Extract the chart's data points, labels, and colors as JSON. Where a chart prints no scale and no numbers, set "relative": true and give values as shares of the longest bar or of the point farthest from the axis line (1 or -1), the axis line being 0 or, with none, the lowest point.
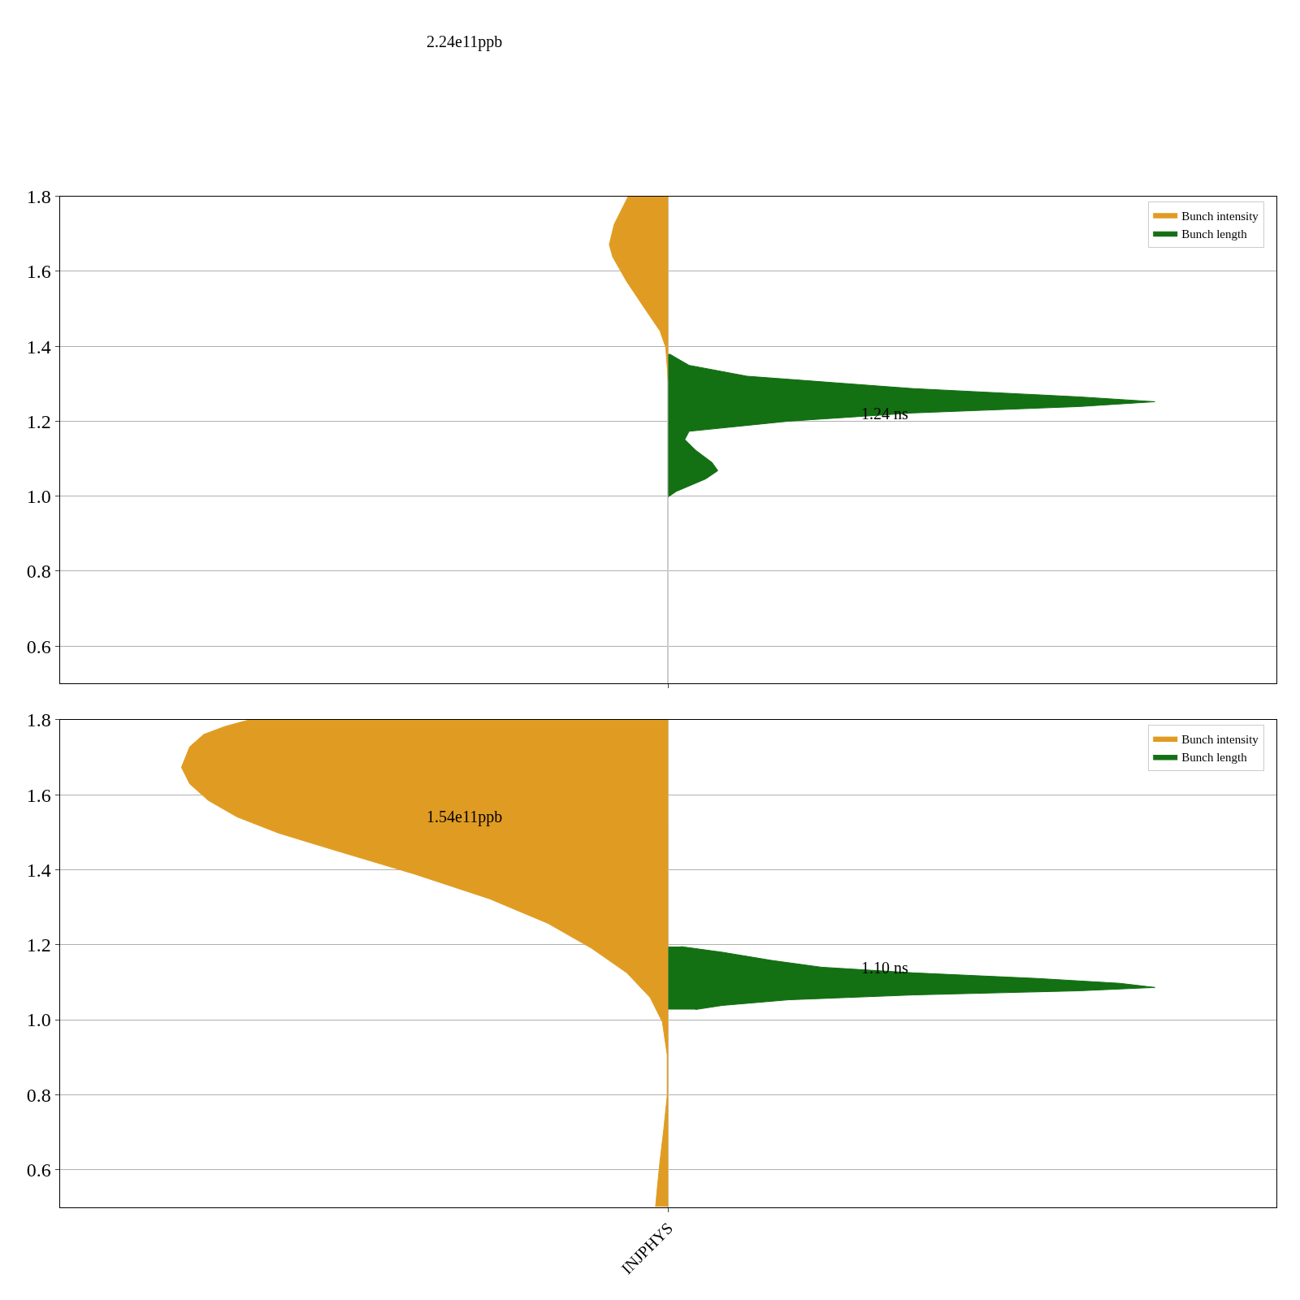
{
  "chart_data": [
    {
      "type": "area",
      "orientation": "horizontal",
      "relative": true,
      "ylim": [
        0.5,
        1.8
      ],
      "yticks": [
        0.6,
        0.8,
        {
          "value": 1,
          "label": "1.0"
        },
        1.2,
        1.4,
        1.6,
        1.8
      ],
      "grid": "y",
      "legend": "top right",
      "tick_labels": "y",
      "series": [
        {
          "name": "Bunch intensity",
          "color": "#e09c22",
          "x": [
            1.8,
            1.725,
            1.671,
            1.638,
            1.572,
            1.506,
            1.441,
            1.397,
            1.309
          ],
          "values": [
            -0.082,
            -0.111,
            -0.121,
            -0.114,
            -0.085,
            -0.051,
            -0.017,
            -0.005,
            0
          ]
        },
        {
          "name": "Bunch length",
          "color": "#137013",
          "x": [
            1.379,
            1.349,
            1.32,
            1.287,
            1.265,
            1.252,
            1.239,
            1.222,
            1.2,
            1.173,
            1.151,
            1.123,
            1.09,
            1.068,
            1.046,
            1.013,
            0.998
          ],
          "values": [
            0.003,
            0.043,
            0.162,
            0.503,
            0.843,
            1.0,
            0.843,
            0.503,
            0.247,
            0.043,
            0.034,
            0.056,
            0.09,
            0.102,
            0.077,
            0.017,
            0
          ]
        }
      ],
      "annotations": [
        "2.24e11ppb",
        "1.24 ns"
      ]
    },
    {
      "type": "area",
      "orientation": "horizontal",
      "relative": true,
      "ylim": [
        0.5,
        1.8
      ],
      "yticks": [
        0.6,
        0.8,
        {
          "value": 1,
          "label": "1.0"
        },
        1.2,
        1.4,
        1.6,
        1.8
      ],
      "grid": "y",
      "legend": "top right",
      "xlabel": "INJPHYS",
      "series": [
        {
          "name": "Bunch intensity",
          "color": "#e09c22",
          "x": [
            1.8,
            1.782,
            1.761,
            1.728,
            1.673,
            1.629,
            1.585,
            1.541,
            1.498,
            1.454,
            1.388,
            1.322,
            1.257,
            1.191,
            1.125,
            1.059,
            0.994,
            0.906,
            0.797,
            0.709,
            0.621,
            0.556,
            0.501
          ],
          "values": [
            -0.86,
            -0.911,
            -0.954,
            -0.983,
            -1.0,
            -0.983,
            -0.945,
            -0.886,
            -0.801,
            -0.69,
            -0.52,
            -0.366,
            -0.247,
            -0.158,
            -0.085,
            -0.037,
            -0.012,
            -0.002,
            -0.002,
            -0.009,
            -0.017,
            -0.022,
            -0.026
          ]
        },
        {
          "name": "Bunch length",
          "color": "#137013",
          "x": [
            1.195,
            1.18,
            1.158,
            1.14,
            1.125,
            1.11,
            1.097,
            1.086,
            1.077,
            1.066,
            1.053,
            1.038,
            1.027
          ],
          "values": [
            0.026,
            0.111,
            0.213,
            0.315,
            0.503,
            0.758,
            0.928,
            1.0,
            0.843,
            0.503,
            0.247,
            0.111,
            0.056
          ]
        }
      ],
      "annotations": [
        "1.54e11ppb",
        "1.10 ns"
      ]
    }
  ]
}
